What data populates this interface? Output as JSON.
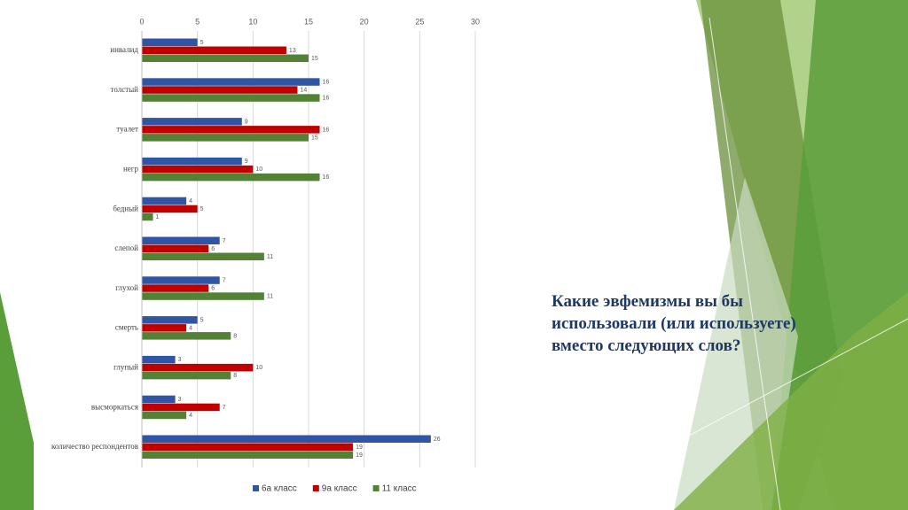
{
  "chart_data": {
    "type": "hbar",
    "categories": [
      "инвалид",
      "толстый",
      "туалет",
      "негр",
      "бедный",
      "слепой",
      "глухой",
      "смерть",
      "глупый",
      "высморкаться",
      "количество респондентов"
    ],
    "series": [
      {
        "name": "6а класс",
        "color": "#2f55a4",
        "values": [
          5,
          16,
          9,
          9,
          4,
          7,
          7,
          5,
          3,
          3,
          26
        ]
      },
      {
        "name": "9а класс",
        "color": "#c00000",
        "values": [
          13,
          14,
          16,
          10,
          5,
          6,
          6,
          4,
          10,
          7,
          19
        ]
      },
      {
        "name": "11 класс",
        "color": "#538135",
        "values": [
          15,
          16,
          15,
          16,
          1,
          11,
          11,
          8,
          8,
          4,
          19
        ]
      }
    ],
    "xlim": [
      0,
      30
    ],
    "xticks": [
      0,
      5,
      10,
      15,
      20,
      25,
      30
    ],
    "grid": true,
    "legend": "bottom"
  },
  "slide": {
    "title": "Какие эвфемизмы вы бы использовали (или используете) вместо следующих слов?"
  }
}
